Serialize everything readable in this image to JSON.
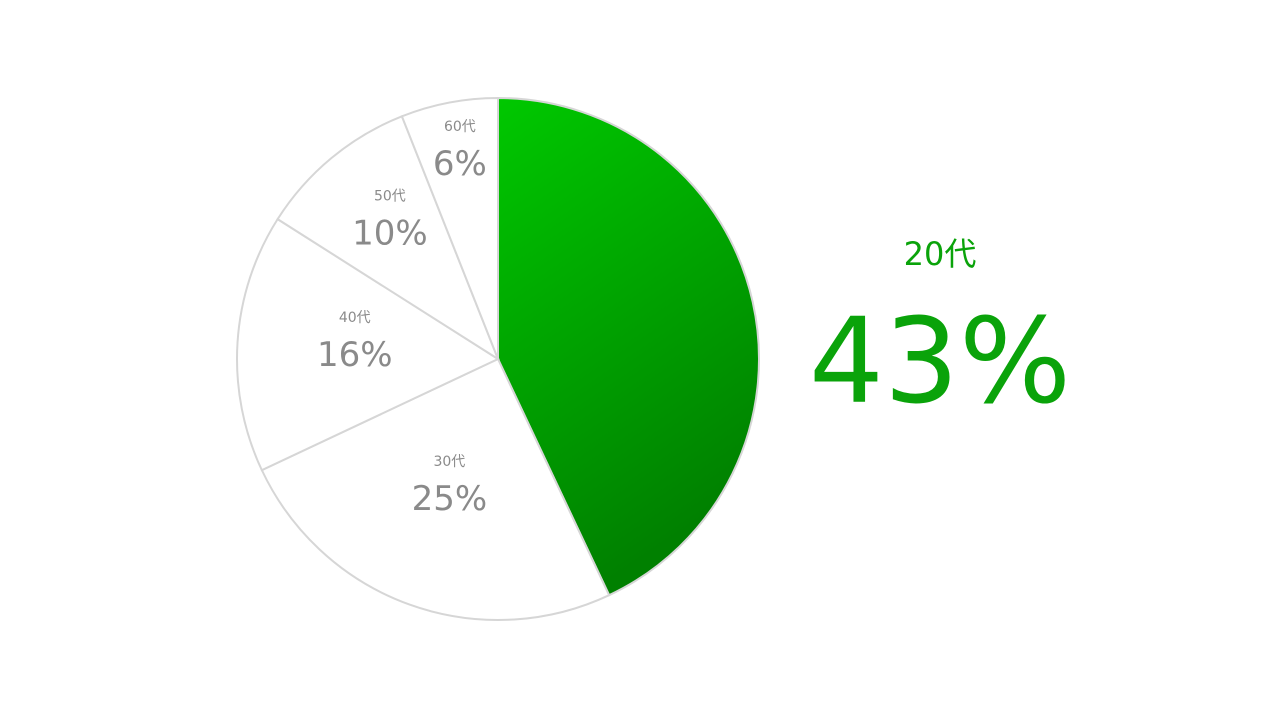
{
  "chart_data": {
    "type": "pie",
    "categories": [
      "20代",
      "30代",
      "40代",
      "50代",
      "60代"
    ],
    "values": [
      43,
      25,
      16,
      10,
      6
    ],
    "labels": [
      "43%",
      "25%",
      "16%",
      "10%",
      "6%"
    ],
    "highlight_index": 0,
    "colors": {
      "highlight_light": "#00c800",
      "highlight_dark": "#008000",
      "other_fill": "#ffffff",
      "stroke": "#d6d6d6",
      "label": "#8a8a8a",
      "highlight_text": "#0aa30a"
    }
  },
  "highlight": {
    "category": "20代",
    "value": "43%"
  }
}
